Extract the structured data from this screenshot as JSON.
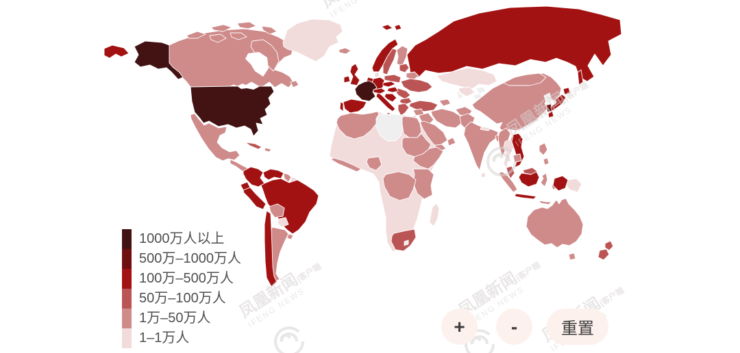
{
  "legend": {
    "items": [
      {
        "label": "1000万人以上",
        "tier": "t1",
        "color": "#431314"
      },
      {
        "label": "500万–1000万人",
        "tier": "t2",
        "color": "#6f1010"
      },
      {
        "label": "100万–500万人",
        "tier": "t3",
        "color": "#a31212"
      },
      {
        "label": "50万–100万人",
        "tier": "t4",
        "color": "#bb5454"
      },
      {
        "label": "1万–50万人",
        "tier": "t5",
        "color": "#cf8a8a"
      },
      {
        "label": "1–1万人",
        "tier": "t6",
        "color": "#f2dbdb"
      }
    ]
  },
  "controls": {
    "zoom_in": "+",
    "zoom_out": "-",
    "reset": "重置",
    "button_bg": "#fdf1ee",
    "text_color": "#3d3d3d"
  },
  "watermark": {
    "cn": "凤凰新闻",
    "en": "IFENG NEWS",
    "suffix": "|客户端",
    "color": "#d8d2d2"
  },
  "map": {
    "sea_color": "#ffffff",
    "border_color": "#ffffff",
    "no_data_color": "#efefef",
    "regions": [
      {
        "id": "russia",
        "tier": "t3"
      },
      {
        "id": "chukotka-wrap",
        "tier": "t3"
      },
      {
        "id": "svalbard-a",
        "tier": "t3"
      },
      {
        "id": "svalbard-b",
        "tier": "t3"
      },
      {
        "id": "sakhalin",
        "tier": "t3"
      },
      {
        "id": "canada",
        "tier": "t5"
      },
      {
        "id": "arctic-island-1",
        "tier": "t5"
      },
      {
        "id": "arctic-island-2",
        "tier": "t5"
      },
      {
        "id": "arctic-island-3",
        "tier": "t5"
      },
      {
        "id": "arctic-island-4",
        "tier": "t5"
      },
      {
        "id": "arctic-island-5",
        "tier": "t5"
      },
      {
        "id": "arctic-island-6",
        "tier": "t5"
      },
      {
        "id": "baffin-island",
        "tier": "t5"
      },
      {
        "id": "newfoundland",
        "tier": "t5"
      },
      {
        "id": "greenland",
        "tier": "t6"
      },
      {
        "id": "alaska",
        "tier": "t1"
      },
      {
        "id": "usa",
        "tier": "t1"
      },
      {
        "id": "mexico",
        "tier": "t5"
      },
      {
        "id": "central-america",
        "tier": "t5"
      },
      {
        "id": "cuba",
        "tier": "t4"
      },
      {
        "id": "hispaniola",
        "tier": "t5"
      },
      {
        "id": "colombia",
        "tier": "t3"
      },
      {
        "id": "venezuela",
        "tier": "t3"
      },
      {
        "id": "guyana",
        "tier": "t5"
      },
      {
        "id": "suriname",
        "tier": "t6"
      },
      {
        "id": "french-guiana",
        "tier": "t1"
      },
      {
        "id": "ecuador",
        "tier": "t3"
      },
      {
        "id": "peru",
        "tier": "t3"
      },
      {
        "id": "brazil",
        "tier": "t3"
      },
      {
        "id": "bolivia",
        "tier": "t5"
      },
      {
        "id": "paraguay",
        "tier": "t6"
      },
      {
        "id": "argentina",
        "tier": "t5"
      },
      {
        "id": "chile",
        "tier": "t3"
      },
      {
        "id": "uruguay",
        "tier": "t5"
      },
      {
        "id": "iceland",
        "tier": "t5"
      },
      {
        "id": "uk",
        "tier": "t3"
      },
      {
        "id": "ireland",
        "tier": "t3"
      },
      {
        "id": "norway",
        "tier": "t3"
      },
      {
        "id": "sweden",
        "tier": "t4"
      },
      {
        "id": "finland",
        "tier": "t5"
      },
      {
        "id": "denmark",
        "tier": "t6"
      },
      {
        "id": "germany",
        "tier": "t3"
      },
      {
        "id": "benelux",
        "tier": "t3"
      },
      {
        "id": "france",
        "tier": "t1"
      },
      {
        "id": "spain",
        "tier": "t3"
      },
      {
        "id": "portugal",
        "tier": "t3"
      },
      {
        "id": "italy",
        "tier": "t3"
      },
      {
        "id": "sicily",
        "tier": "t3"
      },
      {
        "id": "switzerland-austria",
        "tier": "t3"
      },
      {
        "id": "czech-slovakia",
        "tier": "t3"
      },
      {
        "id": "poland",
        "tier": "t4"
      },
      {
        "id": "baltics",
        "tier": "t4"
      },
      {
        "id": "belarus",
        "tier": "t5"
      },
      {
        "id": "ukraine",
        "tier": "t4"
      },
      {
        "id": "romania",
        "tier": "t4"
      },
      {
        "id": "hungary",
        "tier": "t3"
      },
      {
        "id": "balkans",
        "tier": "t3"
      },
      {
        "id": "bulgaria",
        "tier": "t4"
      },
      {
        "id": "greece",
        "tier": "t4"
      },
      {
        "id": "turkey",
        "tier": "t4"
      },
      {
        "id": "syria",
        "tier": "t5"
      },
      {
        "id": "iraq",
        "tier": "t5"
      },
      {
        "id": "israel-jordan",
        "tier": "t5"
      },
      {
        "id": "saudi-arabia",
        "tier": "t5"
      },
      {
        "id": "yemen",
        "tier": "t5"
      },
      {
        "id": "oman",
        "tier": "t5"
      },
      {
        "id": "iran",
        "tier": "t5"
      },
      {
        "id": "afghanistan",
        "tier": "t5"
      },
      {
        "id": "pakistan",
        "tier": "t5"
      },
      {
        "id": "kazakhstan",
        "tier": "t6"
      },
      {
        "id": "uzbekistan",
        "tier": "t6"
      },
      {
        "id": "turkmenistan",
        "tier": "nd"
      },
      {
        "id": "kyrgyzstan",
        "tier": "nd"
      },
      {
        "id": "tajikistan",
        "tier": "nd"
      },
      {
        "id": "caucasus",
        "tier": "t5"
      },
      {
        "id": "india",
        "tier": "t5"
      },
      {
        "id": "nepal",
        "tier": "t6"
      },
      {
        "id": "bangladesh",
        "tier": "t5"
      },
      {
        "id": "sri-lanka",
        "tier": "t6"
      },
      {
        "id": "china",
        "tier": "t5"
      },
      {
        "id": "mongolia",
        "tier": "t5"
      },
      {
        "id": "north-korea",
        "tier": "nd"
      },
      {
        "id": "south-korea",
        "tier": "t2"
      },
      {
        "id": "japan-hokkaido",
        "tier": "t3"
      },
      {
        "id": "japan-honshu",
        "tier": "t3"
      },
      {
        "id": "japan-kyushu",
        "tier": "t3"
      },
      {
        "id": "myanmar",
        "tier": "t5"
      },
      {
        "id": "thailand",
        "tier": "t6"
      },
      {
        "id": "laos",
        "tier": "t5"
      },
      {
        "id": "vietnam",
        "tier": "t3"
      },
      {
        "id": "cambodia",
        "tier": "t5"
      },
      {
        "id": "malaysia-peninsula",
        "tier": "t4"
      },
      {
        "id": "sumatra",
        "tier": "t5"
      },
      {
        "id": "java",
        "tier": "t3"
      },
      {
        "id": "malaysia-borneo",
        "tier": "t4"
      },
      {
        "id": "kalimantan",
        "tier": "t3"
      },
      {
        "id": "sulawesi",
        "tier": "t5"
      },
      {
        "id": "lesser-sunda",
        "tier": "t5"
      },
      {
        "id": "maluku",
        "tier": "t5"
      },
      {
        "id": "philippines",
        "tier": "t5"
      },
      {
        "id": "philippines-south",
        "tier": "t5"
      },
      {
        "id": "west-papua",
        "tier": "t3"
      },
      {
        "id": "papua-new-guinea",
        "tier": "t6"
      },
      {
        "id": "australia",
        "tier": "t5"
      },
      {
        "id": "tasmania",
        "tier": "t5"
      },
      {
        "id": "nz-north-island",
        "tier": "t4"
      },
      {
        "id": "nz-south-island",
        "tier": "t4"
      },
      {
        "id": "africa-base",
        "tier": "t6"
      },
      {
        "id": "maghreb",
        "tier": "t5"
      },
      {
        "id": "libya",
        "tier": "nd"
      },
      {
        "id": "egypt",
        "tier": "t5"
      },
      {
        "id": "sudan",
        "tier": "t5"
      },
      {
        "id": "horn-of-africa",
        "tier": "t5"
      },
      {
        "id": "east-africa",
        "tier": "t5"
      },
      {
        "id": "nigeria",
        "tier": "t5"
      },
      {
        "id": "guinea-coast",
        "tier": "t5"
      },
      {
        "id": "drc",
        "tier": "t5"
      },
      {
        "id": "south-africa",
        "tier": "t4"
      },
      {
        "id": "lesotho",
        "tier": "nd"
      },
      {
        "id": "madagascar",
        "tier": "t6"
      }
    ]
  }
}
